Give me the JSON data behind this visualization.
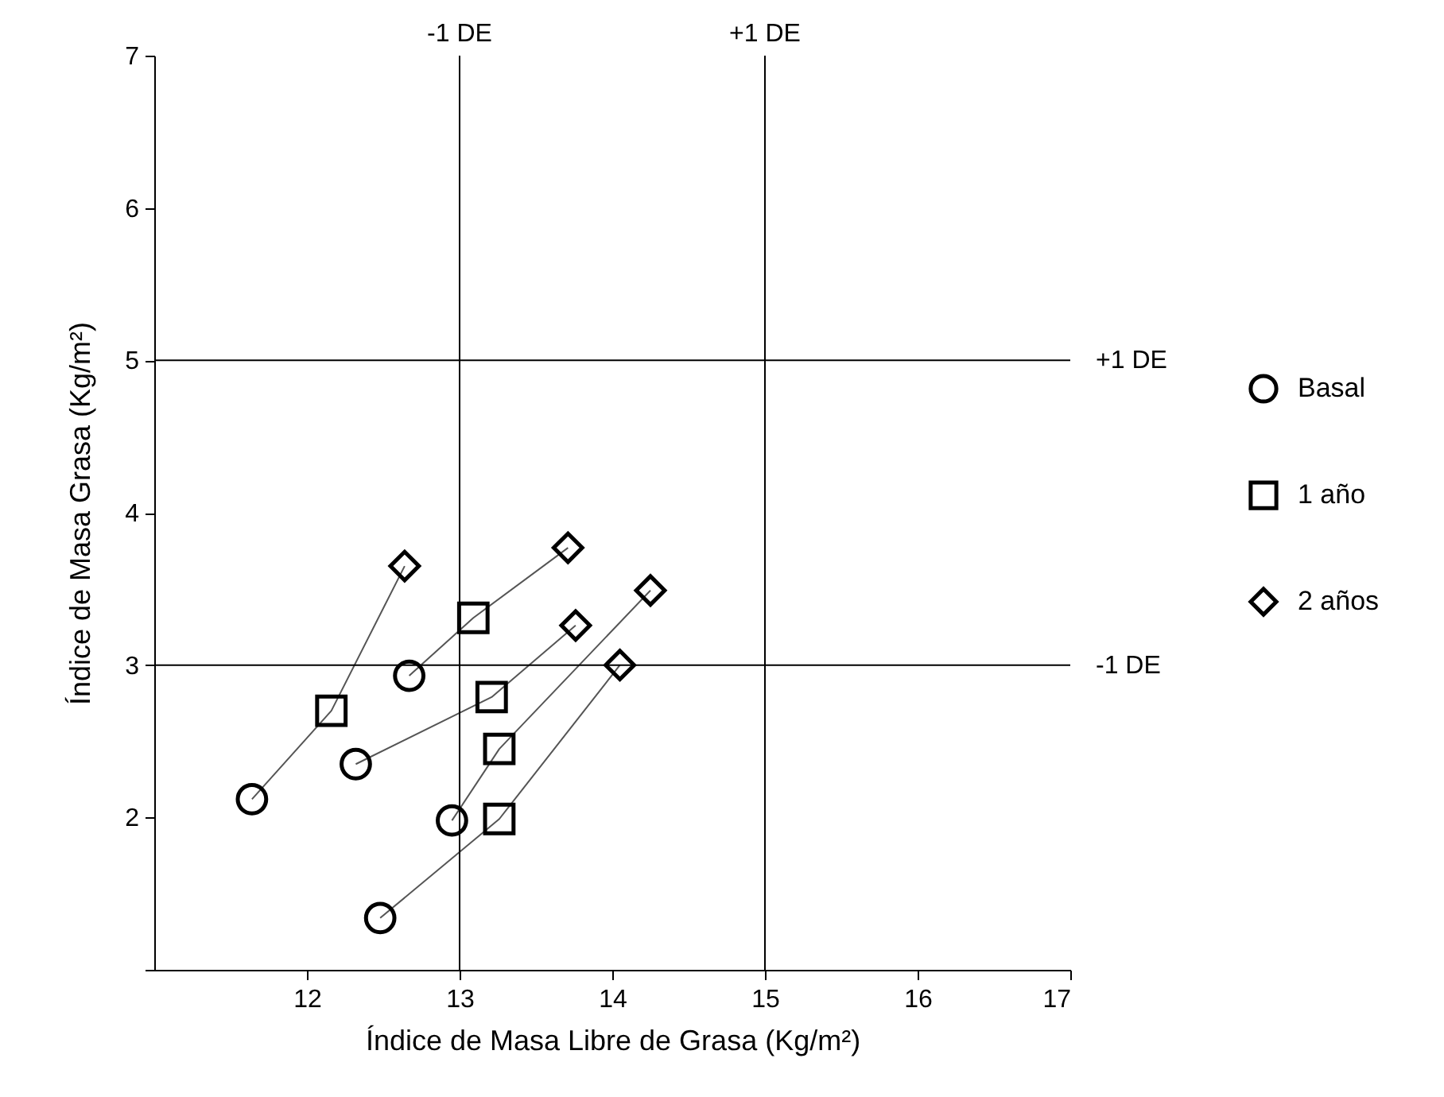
{
  "chart_data": {
    "type": "scatter",
    "xlabel": "Índice de Masa Libre de Grasa (Kg/m²)",
    "ylabel": "Índice de Masa Grasa (Kg/m²)",
    "xlim": [
      11,
      17
    ],
    "xticks": [
      12,
      13,
      14,
      15,
      16,
      17
    ],
    "ylim": [
      1,
      7
    ],
    "yticks": [
      {
        "value": 1,
        "label": null
      },
      2,
      3,
      4,
      5,
      6,
      7
    ],
    "grid": false,
    "legend": "right",
    "ref_lines": [
      {
        "axis": "x",
        "value": 13,
        "label": "-1 DE",
        "color": "#000000"
      },
      {
        "axis": "x",
        "value": 15,
        "label": "+1 DE",
        "color": "#000000"
      },
      {
        "axis": "y",
        "value": 5,
        "label": "+1 DE",
        "color": "#000000"
      },
      {
        "axis": "y",
        "value": 3,
        "label": "-1 DE",
        "color": "#000000"
      }
    ],
    "series": [
      {
        "type": "line",
        "color": "#555555",
        "x": [
          11.64,
          12.16,
          12.64
        ],
        "values": [
          2.12,
          2.7,
          3.65
        ]
      },
      {
        "type": "line",
        "color": "#555555",
        "x": [
          12.67,
          13.09,
          13.71
        ],
        "values": [
          2.93,
          3.31,
          3.77
        ]
      },
      {
        "type": "line",
        "color": "#555555",
        "x": [
          12.32,
          13.21,
          13.76
        ],
        "values": [
          2.35,
          2.79,
          3.26
        ]
      },
      {
        "type": "line",
        "color": "#555555",
        "x": [
          12.95,
          13.26,
          14.25
        ],
        "values": [
          1.98,
          2.45,
          3.49
        ]
      },
      {
        "type": "line",
        "color": "#555555",
        "x": [
          12.48,
          13.26,
          14.05
        ],
        "values": [
          1.34,
          1.99,
          3.0
        ]
      },
      {
        "name": "Basal",
        "color": "#000000",
        "marker": "circle",
        "x": [
          11.64,
          12.32,
          12.67,
          12.95,
          12.48
        ],
        "values": [
          2.12,
          2.35,
          2.93,
          1.98,
          1.34
        ]
      },
      {
        "name": "1 año",
        "color": "#000000",
        "marker": "square",
        "x": [
          12.16,
          13.21,
          13.09,
          13.26,
          13.26
        ],
        "values": [
          2.7,
          2.79,
          3.31,
          2.45,
          1.99
        ]
      },
      {
        "name": "2 años",
        "color": "#000000",
        "marker": "diamond",
        "x": [
          12.64,
          13.76,
          13.71,
          14.25,
          14.05
        ],
        "values": [
          3.65,
          3.26,
          3.77,
          3.49,
          3.0
        ]
      }
    ]
  }
}
